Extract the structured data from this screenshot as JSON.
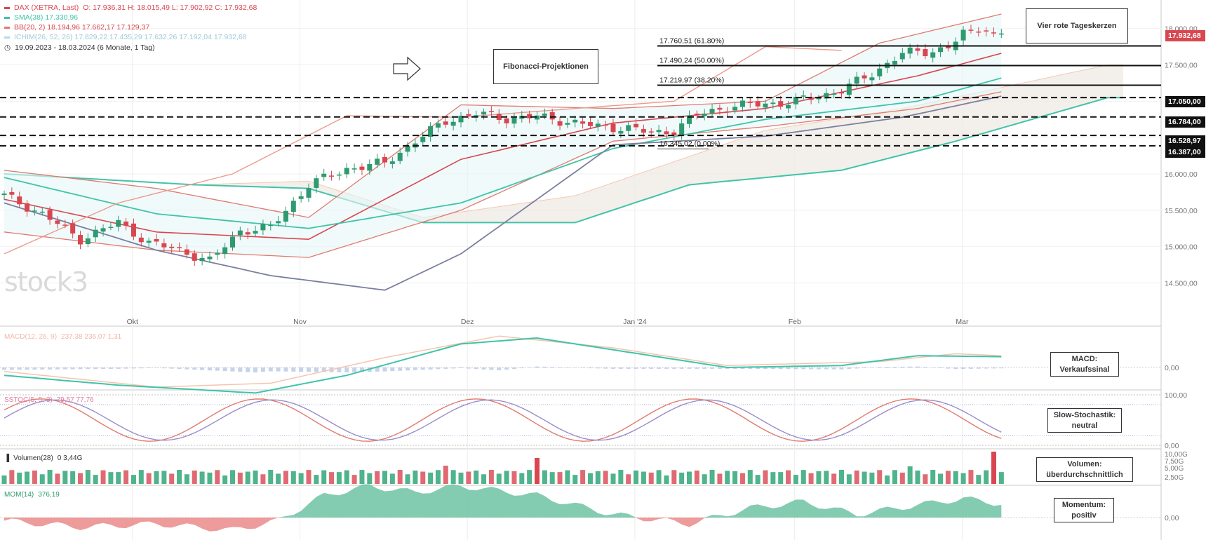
{
  "header": {
    "instrument": "DAX (XETRA, Last)",
    "ohlc": "O: 17.936,31  H: 18.015,49  L: 17.902,92  C: 17.932,68",
    "sma": "SMA(38)  17.330,96",
    "bb": "BB(20, 2)  18.194,96  17.662,17  17.129,37",
    "ichimoku": "ICHIM(26, 52, 26)  17.829,22  17.435,29  17.632,26  17.192,04  17.932,68",
    "range": "19.09.2023 - 18.03.2024  (6 Monate, 1 Tag)"
  },
  "colors": {
    "up": "#2e9a6f",
    "down": "#d9464f",
    "sma": "#3fc4a8",
    "bb": "#e07a6f",
    "ichimoku_lagging": "#ed9a8d",
    "ichimoku_base": "#7a7f9e",
    "cloud": "#efe9e4",
    "price_tag": "#d9464f"
  },
  "annotations": {
    "fib_title": "Fibonacci-Projektionen",
    "candles_title": "Vier rote Tageskerzen",
    "macd_note": [
      "MACD:",
      "Verkaufssinal"
    ],
    "stoch_note": [
      "Slow-Stochastik:",
      "neutral"
    ],
    "volume_note": [
      "Volumen:",
      "überdurchschnittlich"
    ],
    "momentum_note": [
      "Momentum:",
      "positiv"
    ],
    "watermark": "stock3"
  },
  "price_tags": {
    "last": "17.932,68",
    "levels": [
      "17.050,00",
      "16.784,00",
      "16.528,97",
      "16.387,00"
    ]
  },
  "chart_data": {
    "type": "candlestick",
    "x_labels": [
      "Okt",
      "Nov",
      "Dez",
      "Jan '24",
      "Feb",
      "Mar"
    ],
    "y_ticks": [
      18000,
      17500,
      17000,
      16500,
      16000,
      15500,
      15000,
      14500
    ],
    "y_tick_labels": [
      "18.000,00",
      "17.500,00",
      "17.000,00",
      "16.500,00",
      "16.000,00",
      "15.500,00",
      "15.000,00",
      "14.500,00"
    ],
    "ylim": [
      14050,
      18200
    ],
    "horizontal_levels": [
      17050,
      16784,
      16528.97,
      16387
    ],
    "fibonacci": [
      {
        "label": "17.760,51 (61.80%)",
        "value": 17760.51
      },
      {
        "label": "17.490,24 (50.00%)",
        "value": 17490.24
      },
      {
        "label": "17.219,97 (38.20%)",
        "value": 17219.97
      },
      {
        "label": "16.345,02 (0.00%)",
        "value": 16345.02
      }
    ],
    "close_anchors": [
      [
        0,
        15700
      ],
      [
        5,
        15450
      ],
      [
        10,
        15100
      ],
      [
        15,
        15330
      ],
      [
        19,
        15050
      ],
      [
        23,
        14950
      ],
      [
        27,
        14800
      ],
      [
        31,
        15220
      ],
      [
        35,
        15260
      ],
      [
        40,
        15850
      ],
      [
        45,
        16070
      ],
      [
        50,
        16150
      ],
      [
        54,
        16450
      ],
      [
        58,
        16730
      ],
      [
        62,
        16830
      ],
      [
        66,
        16760
      ],
      [
        70,
        16790
      ],
      [
        74,
        16720
      ],
      [
        78,
        16650
      ],
      [
        82,
        16630
      ],
      [
        85,
        16560
      ],
      [
        88,
        16600
      ],
      [
        91,
        16820
      ],
      [
        95,
        16920
      ],
      [
        99,
        16960
      ],
      [
        103,
        16980
      ],
      [
        107,
        17070
      ],
      [
        110,
        17150
      ],
      [
        114,
        17380
      ],
      [
        118,
        17660
      ],
      [
        121,
        17680
      ],
      [
        124,
        17740
      ],
      [
        126,
        17930
      ],
      [
        129,
        17940
      ],
      [
        131,
        17932
      ]
    ],
    "sma_anchors": [
      [
        0,
        15950
      ],
      [
        20,
        15450
      ],
      [
        40,
        15250
      ],
      [
        60,
        15600
      ],
      [
        80,
        16350
      ],
      [
        100,
        16750
      ],
      [
        120,
        17000
      ],
      [
        131,
        17320
      ]
    ],
    "bb_upper_anchors": [
      [
        0,
        16050
      ],
      [
        20,
        15800
      ],
      [
        40,
        15400
      ],
      [
        60,
        16950
      ],
      [
        80,
        16900
      ],
      [
        100,
        17000
      ],
      [
        115,
        17800
      ],
      [
        131,
        18200
      ]
    ],
    "bb_middle_anchors": [
      [
        0,
        15650
      ],
      [
        20,
        15200
      ],
      [
        40,
        15100
      ],
      [
        60,
        16200
      ],
      [
        80,
        16700
      ],
      [
        100,
        16900
      ],
      [
        120,
        17350
      ],
      [
        131,
        17660
      ]
    ],
    "bb_lower_anchors": [
      [
        0,
        15200
      ],
      [
        20,
        14950
      ],
      [
        40,
        14850
      ],
      [
        60,
        15500
      ],
      [
        80,
        16450
      ],
      [
        100,
        16650
      ],
      [
        120,
        16900
      ],
      [
        131,
        17130
      ]
    ],
    "base_line_anchors": [
      [
        0,
        15600
      ],
      [
        20,
        14950
      ],
      [
        35,
        14600
      ],
      [
        50,
        14400
      ],
      [
        60,
        14900
      ],
      [
        80,
        16400
      ],
      [
        100,
        16520
      ],
      [
        118,
        16780
      ],
      [
        131,
        17070
      ]
    ],
    "lagging_anchors": [
      [
        0,
        14900
      ],
      [
        15,
        15600
      ],
      [
        30,
        16000
      ],
      [
        45,
        16800
      ],
      [
        60,
        16780
      ],
      [
        75,
        16900
      ],
      [
        88,
        17000
      ],
      [
        100,
        17750
      ],
      [
        110,
        17700
      ]
    ],
    "cloud_top_anchors": [
      [
        0,
        16000
      ],
      [
        25,
        15850
      ],
      [
        40,
        15900
      ],
      [
        55,
        15400
      ],
      [
        75,
        15700
      ],
      [
        100,
        16600
      ],
      [
        118,
        16900
      ],
      [
        145,
        17500
      ]
    ],
    "cloud_bottom_anchors": [
      [
        0,
        16000
      ],
      [
        25,
        15850
      ],
      [
        40,
        15800
      ],
      [
        55,
        15330
      ],
      [
        75,
        15330
      ],
      [
        90,
        15850
      ],
      [
        110,
        16050
      ],
      [
        125,
        16450
      ],
      [
        145,
        17050
      ]
    ],
    "panels": {
      "macd": {
        "label": "MACD(12, 26, 9)",
        "values": "237,38  236,07  1,31",
        "ytick": "0,00"
      },
      "stoch": {
        "label": "SSTOC(5, 5, 3)",
        "values": "79,57  77,76",
        "yticks": [
          "100,00",
          "0,00"
        ]
      },
      "volume": {
        "label": "Volumen(28)",
        "values": "0  3,44G",
        "yticks": [
          "10,00G",
          "7,50G",
          "5,00G",
          "2,50G"
        ]
      },
      "momentum": {
        "label": "MOM(14)",
        "values": "376,19",
        "ytick": "0,00"
      }
    }
  }
}
